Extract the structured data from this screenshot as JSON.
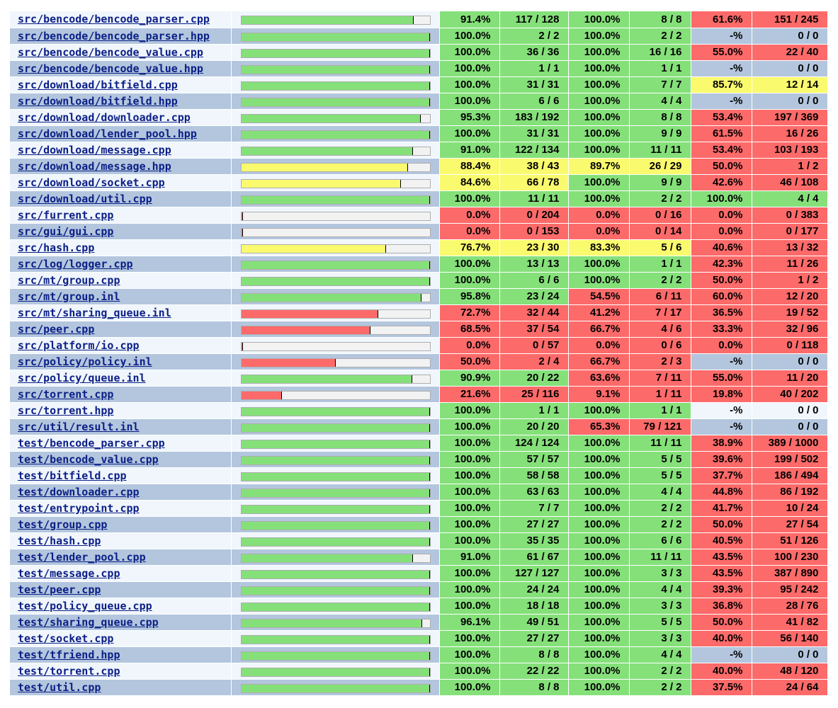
{
  "colors": {
    "high": "#85e07a",
    "medium": "#fafa6e",
    "low": "#fd6a6a",
    "row_light": "#f0f6fc",
    "row_dark": "#b3c6de",
    "link": "#0b1f86"
  },
  "rows": [
    {
      "file": "src/bencode/bencode_parser.cpp",
      "line_pct": "91.4%",
      "lines": "117 / 128",
      "func_pct": "100.0%",
      "funcs": "8 / 8",
      "branch_pct": "61.6%",
      "branches": "151 / 245"
    },
    {
      "file": "src/bencode/bencode_parser.hpp",
      "line_pct": "100.0%",
      "lines": "2 / 2",
      "func_pct": "100.0%",
      "funcs": "2 / 2",
      "branch_pct": "-%",
      "branches": "0 / 0"
    },
    {
      "file": "src/bencode/bencode_value.cpp",
      "line_pct": "100.0%",
      "lines": "36 / 36",
      "func_pct": "100.0%",
      "funcs": "16 / 16",
      "branch_pct": "55.0%",
      "branches": "22 / 40"
    },
    {
      "file": "src/bencode/bencode_value.hpp",
      "line_pct": "100.0%",
      "lines": "1 / 1",
      "func_pct": "100.0%",
      "funcs": "1 / 1",
      "branch_pct": "-%",
      "branches": "0 / 0"
    },
    {
      "file": "src/download/bitfield.cpp",
      "line_pct": "100.0%",
      "lines": "31 / 31",
      "func_pct": "100.0%",
      "funcs": "7 / 7",
      "branch_pct": "85.7%",
      "branches": "12 / 14"
    },
    {
      "file": "src/download/bitfield.hpp",
      "line_pct": "100.0%",
      "lines": "6 / 6",
      "func_pct": "100.0%",
      "funcs": "4 / 4",
      "branch_pct": "-%",
      "branches": "0 / 0"
    },
    {
      "file": "src/download/downloader.cpp",
      "line_pct": "95.3%",
      "lines": "183 / 192",
      "func_pct": "100.0%",
      "funcs": "8 / 8",
      "branch_pct": "53.4%",
      "branches": "197 / 369"
    },
    {
      "file": "src/download/lender_pool.hpp",
      "line_pct": "100.0%",
      "lines": "31 / 31",
      "func_pct": "100.0%",
      "funcs": "9 / 9",
      "branch_pct": "61.5%",
      "branches": "16 / 26"
    },
    {
      "file": "src/download/message.cpp",
      "line_pct": "91.0%",
      "lines": "122 / 134",
      "func_pct": "100.0%",
      "funcs": "11 / 11",
      "branch_pct": "53.4%",
      "branches": "103 / 193"
    },
    {
      "file": "src/download/message.hpp",
      "line_pct": "88.4%",
      "lines": "38 / 43",
      "func_pct": "89.7%",
      "funcs": "26 / 29",
      "branch_pct": "50.0%",
      "branches": "1 / 2"
    },
    {
      "file": "src/download/socket.cpp",
      "line_pct": "84.6%",
      "lines": "66 / 78",
      "func_pct": "100.0%",
      "funcs": "9 / 9",
      "branch_pct": "42.6%",
      "branches": "46 / 108"
    },
    {
      "file": "src/download/util.cpp",
      "line_pct": "100.0%",
      "lines": "11 / 11",
      "func_pct": "100.0%",
      "funcs": "2 / 2",
      "branch_pct": "100.0%",
      "branches": "4 / 4"
    },
    {
      "file": "src/furrent.cpp",
      "line_pct": "0.0%",
      "lines": "0 / 204",
      "func_pct": "0.0%",
      "funcs": "0 / 16",
      "branch_pct": "0.0%",
      "branches": "0 / 383"
    },
    {
      "file": "src/gui/gui.cpp",
      "line_pct": "0.0%",
      "lines": "0 / 153",
      "func_pct": "0.0%",
      "funcs": "0 / 14",
      "branch_pct": "0.0%",
      "branches": "0 / 177"
    },
    {
      "file": "src/hash.cpp",
      "line_pct": "76.7%",
      "lines": "23 / 30",
      "func_pct": "83.3%",
      "funcs": "5 / 6",
      "branch_pct": "40.6%",
      "branches": "13 / 32"
    },
    {
      "file": "src/log/logger.cpp",
      "line_pct": "100.0%",
      "lines": "13 / 13",
      "func_pct": "100.0%",
      "funcs": "1 / 1",
      "branch_pct": "42.3%",
      "branches": "11 / 26"
    },
    {
      "file": "src/mt/group.cpp",
      "line_pct": "100.0%",
      "lines": "6 / 6",
      "func_pct": "100.0%",
      "funcs": "2 / 2",
      "branch_pct": "50.0%",
      "branches": "1 / 2"
    },
    {
      "file": "src/mt/group.inl",
      "line_pct": "95.8%",
      "lines": "23 / 24",
      "func_pct": "54.5%",
      "funcs": "6 / 11",
      "branch_pct": "60.0%",
      "branches": "12 / 20"
    },
    {
      "file": "src/mt/sharing_queue.inl",
      "line_pct": "72.7%",
      "lines": "32 / 44",
      "func_pct": "41.2%",
      "funcs": "7 / 17",
      "branch_pct": "36.5%",
      "branches": "19 / 52"
    },
    {
      "file": "src/peer.cpp",
      "line_pct": "68.5%",
      "lines": "37 / 54",
      "func_pct": "66.7%",
      "funcs": "4 / 6",
      "branch_pct": "33.3%",
      "branches": "32 / 96"
    },
    {
      "file": "src/platform/io.cpp",
      "line_pct": "0.0%",
      "lines": "0 / 57",
      "func_pct": "0.0%",
      "funcs": "0 / 6",
      "branch_pct": "0.0%",
      "branches": "0 / 118"
    },
    {
      "file": "src/policy/policy.inl",
      "line_pct": "50.0%",
      "lines": "2 / 4",
      "func_pct": "66.7%",
      "funcs": "2 / 3",
      "branch_pct": "-%",
      "branches": "0 / 0"
    },
    {
      "file": "src/policy/queue.inl",
      "line_pct": "90.9%",
      "lines": "20 / 22",
      "func_pct": "63.6%",
      "funcs": "7 / 11",
      "branch_pct": "55.0%",
      "branches": "11 / 20"
    },
    {
      "file": "src/torrent.cpp",
      "line_pct": "21.6%",
      "lines": "25 / 116",
      "func_pct": "9.1%",
      "funcs": "1 / 11",
      "branch_pct": "19.8%",
      "branches": "40 / 202"
    },
    {
      "file": "src/torrent.hpp",
      "line_pct": "100.0%",
      "lines": "1 / 1",
      "func_pct": "100.0%",
      "funcs": "1 / 1",
      "branch_pct": "-%",
      "branches": "0 / 0"
    },
    {
      "file": "src/util/result.inl",
      "line_pct": "100.0%",
      "lines": "20 / 20",
      "func_pct": "65.3%",
      "funcs": "79 / 121",
      "branch_pct": "-%",
      "branches": "0 / 0"
    },
    {
      "file": "test/bencode_parser.cpp",
      "line_pct": "100.0%",
      "lines": "124 / 124",
      "func_pct": "100.0%",
      "funcs": "11 / 11",
      "branch_pct": "38.9%",
      "branches": "389 / 1000"
    },
    {
      "file": "test/bencode_value.cpp",
      "line_pct": "100.0%",
      "lines": "57 / 57",
      "func_pct": "100.0%",
      "funcs": "5 / 5",
      "branch_pct": "39.6%",
      "branches": "199 / 502"
    },
    {
      "file": "test/bitfield.cpp",
      "line_pct": "100.0%",
      "lines": "58 / 58",
      "func_pct": "100.0%",
      "funcs": "5 / 5",
      "branch_pct": "37.7%",
      "branches": "186 / 494"
    },
    {
      "file": "test/downloader.cpp",
      "line_pct": "100.0%",
      "lines": "63 / 63",
      "func_pct": "100.0%",
      "funcs": "4 / 4",
      "branch_pct": "44.8%",
      "branches": "86 / 192"
    },
    {
      "file": "test/entrypoint.cpp",
      "line_pct": "100.0%",
      "lines": "7 / 7",
      "func_pct": "100.0%",
      "funcs": "2 / 2",
      "branch_pct": "41.7%",
      "branches": "10 / 24"
    },
    {
      "file": "test/group.cpp",
      "line_pct": "100.0%",
      "lines": "27 / 27",
      "func_pct": "100.0%",
      "funcs": "2 / 2",
      "branch_pct": "50.0%",
      "branches": "27 / 54"
    },
    {
      "file": "test/hash.cpp",
      "line_pct": "100.0%",
      "lines": "35 / 35",
      "func_pct": "100.0%",
      "funcs": "6 / 6",
      "branch_pct": "40.5%",
      "branches": "51 / 126"
    },
    {
      "file": "test/lender_pool.cpp",
      "line_pct": "91.0%",
      "lines": "61 / 67",
      "func_pct": "100.0%",
      "funcs": "11 / 11",
      "branch_pct": "43.5%",
      "branches": "100 / 230"
    },
    {
      "file": "test/message.cpp",
      "line_pct": "100.0%",
      "lines": "127 / 127",
      "func_pct": "100.0%",
      "funcs": "3 / 3",
      "branch_pct": "43.5%",
      "branches": "387 / 890"
    },
    {
      "file": "test/peer.cpp",
      "line_pct": "100.0%",
      "lines": "24 / 24",
      "func_pct": "100.0%",
      "funcs": "4 / 4",
      "branch_pct": "39.3%",
      "branches": "95 / 242"
    },
    {
      "file": "test/policy_queue.cpp",
      "line_pct": "100.0%",
      "lines": "18 / 18",
      "func_pct": "100.0%",
      "funcs": "3 / 3",
      "branch_pct": "36.8%",
      "branches": "28 / 76"
    },
    {
      "file": "test/sharing_queue.cpp",
      "line_pct": "96.1%",
      "lines": "49 / 51",
      "func_pct": "100.0%",
      "funcs": "5 / 5",
      "branch_pct": "50.0%",
      "branches": "41 / 82"
    },
    {
      "file": "test/socket.cpp",
      "line_pct": "100.0%",
      "lines": "27 / 27",
      "func_pct": "100.0%",
      "funcs": "3 / 3",
      "branch_pct": "40.0%",
      "branches": "56 / 140"
    },
    {
      "file": "test/tfriend.hpp",
      "line_pct": "100.0%",
      "lines": "8 / 8",
      "func_pct": "100.0%",
      "funcs": "4 / 4",
      "branch_pct": "-%",
      "branches": "0 / 0"
    },
    {
      "file": "test/torrent.cpp",
      "line_pct": "100.0%",
      "lines": "22 / 22",
      "func_pct": "100.0%",
      "funcs": "2 / 2",
      "branch_pct": "40.0%",
      "branches": "48 / 120"
    },
    {
      "file": "test/util.cpp",
      "line_pct": "100.0%",
      "lines": "8 / 8",
      "func_pct": "100.0%",
      "funcs": "2 / 2",
      "branch_pct": "37.5%",
      "branches": "24 / 64"
    }
  ]
}
